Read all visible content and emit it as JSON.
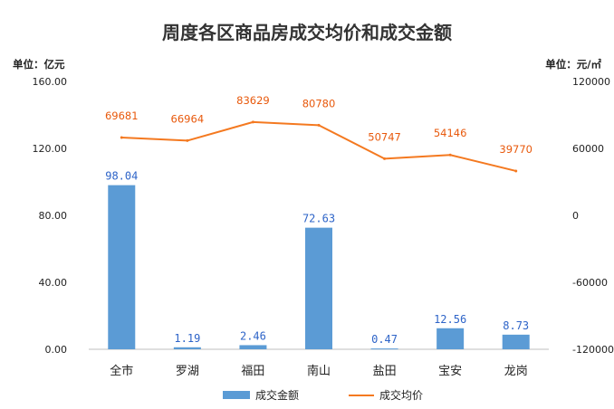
{
  "chart_data": {
    "type": "bar",
    "title": "周度各区商品房成交均价和成交金额",
    "yunit_left": "单位：亿元",
    "yunit_right": "单位：元/㎡",
    "categories": [
      "全市",
      "罗湖",
      "福田",
      "南山",
      "盐田",
      "宝安",
      "龙岗"
    ],
    "series": [
      {
        "name": "成交金额",
        "type": "bar",
        "axis": "left",
        "values": [
          98.04,
          1.19,
          2.46,
          72.63,
          0.47,
          12.56,
          8.73
        ],
        "labels": [
          "98.04",
          "1.19",
          "2.46",
          "72.63",
          "0.47",
          "12.56",
          "8.73"
        ]
      },
      {
        "name": "成交均价",
        "type": "line",
        "axis": "right",
        "values": [
          69681,
          66964,
          83629,
          80780,
          50747,
          54146,
          39770
        ],
        "labels": [
          "69681",
          "66964",
          "83629",
          "80780",
          "50747",
          "54146",
          "39770"
        ]
      }
    ],
    "ylim_left": [
      0,
      160
    ],
    "yticks_left": [
      "0.00",
      "40.00",
      "80.00",
      "120.00",
      "160.00"
    ],
    "ylim_right": [
      -120000,
      120000
    ],
    "yticks_right": [
      "-120000",
      "-60000",
      "0",
      "60000",
      "120000"
    ],
    "grid": false,
    "legend_position": "bottom",
    "colors": {
      "bar": "#5B9BD5",
      "line": "#F47920",
      "bar_label": "#2E64C8",
      "line_label": "#E8590C"
    }
  }
}
